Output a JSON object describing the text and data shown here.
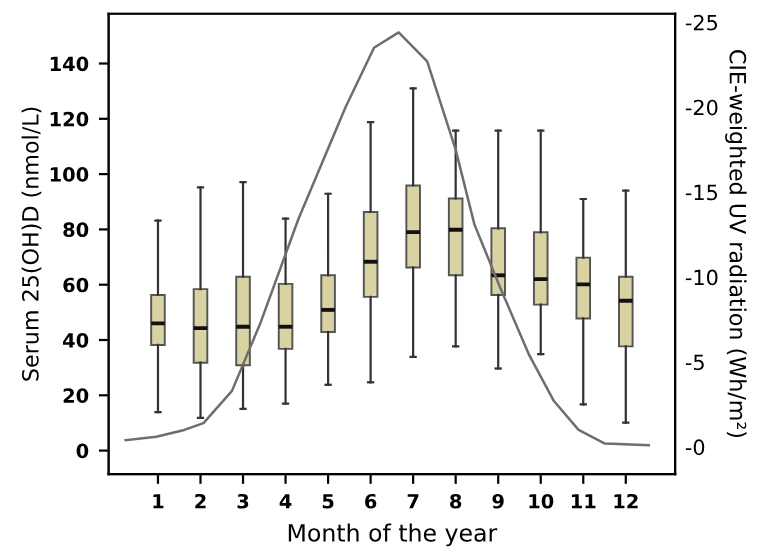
{
  "chart_data": {
    "type": "box",
    "xlabel": "Month of the year",
    "ylabel": "Serum 25(OH)D (nmol/L)",
    "y2label": "CIE-weighted UV radiation (Wh/m²)",
    "xlim": [
      -0.16,
      13.16
    ],
    "xticks": [
      1,
      2,
      3,
      4,
      5,
      6,
      7,
      8,
      9,
      10,
      11,
      12
    ],
    "ylim": [
      -8.5,
      158
    ],
    "yticks": [
      0,
      20,
      40,
      60,
      80,
      100,
      120,
      140
    ],
    "y2lim": [
      1.6,
      -25.5
    ],
    "y2ticks": [
      -25,
      -20,
      -15,
      -10,
      -5,
      {
        "value": 0,
        "label": "-0"
      }
    ],
    "grid": false,
    "series": [
      {
        "color": "#d9d2a2",
        "x": [
          1,
          2,
          3,
          4,
          5,
          6,
          7,
          8,
          9,
          10,
          11,
          12
        ],
        "boxes": [
          {
            "low": 13.9,
            "q1": 38.2,
            "median": 46,
            "q3": 56.3,
            "high": 83.2
          },
          {
            "low": 11.8,
            "q1": 31.8,
            "median": 44.3,
            "q3": 58.4,
            "high": 95.2
          },
          {
            "low": 15.1,
            "q1": 30.9,
            "median": 44.8,
            "q3": 62.9,
            "high": 97.1
          },
          {
            "low": 17,
            "q1": 36.8,
            "median": 44.8,
            "q3": 60.3,
            "high": 83.9
          },
          {
            "low": 23.8,
            "q1": 42.9,
            "median": 50.9,
            "q3": 63.4,
            "high": 92.9
          },
          {
            "low": 24.7,
            "q1": 55.6,
            "median": 68.3,
            "q3": 86.3,
            "high": 118.8
          },
          {
            "low": 33.9,
            "q1": 66.2,
            "median": 79,
            "q3": 95.9,
            "high": 131
          },
          {
            "low": 37.7,
            "q1": 63.4,
            "median": 79.9,
            "q3": 91.2,
            "high": 115.7
          },
          {
            "low": 29.7,
            "q1": 56.3,
            "median": 63.4,
            "q3": 80.4,
            "high": 115.7
          },
          {
            "low": 34.9,
            "q1": 52.8,
            "median": 62,
            "q3": 79,
            "high": 115.7
          },
          {
            "low": 16.7,
            "q1": 47.8,
            "median": 60.1,
            "q3": 69.8,
            "high": 91
          },
          {
            "low": 10.1,
            "q1": 37.7,
            "median": 54.2,
            "q3": 62.9,
            "high": 94
          }
        ]
      },
      {
        "type": "line",
        "axis": "y2",
        "color": "#6e6e6e",
        "x": [
          0.24,
          0.96,
          1.62,
          2.07,
          2.74,
          3.41,
          4.3,
          5.41,
          6.08,
          6.66,
          7.33,
          8.0,
          8.44,
          9.06,
          9.73,
          10.31,
          10.89,
          11.51,
          12.54
        ],
        "values": [
          -0.4,
          -0.6,
          -1.0,
          -1.4,
          -3.3,
          -7.3,
          -13.4,
          -20.0,
          -23.5,
          -24.4,
          -22.7,
          -17.5,
          -13.1,
          -9.3,
          -5.4,
          -2.7,
          -1.0,
          -0.2,
          -0.1
        ]
      }
    ]
  }
}
